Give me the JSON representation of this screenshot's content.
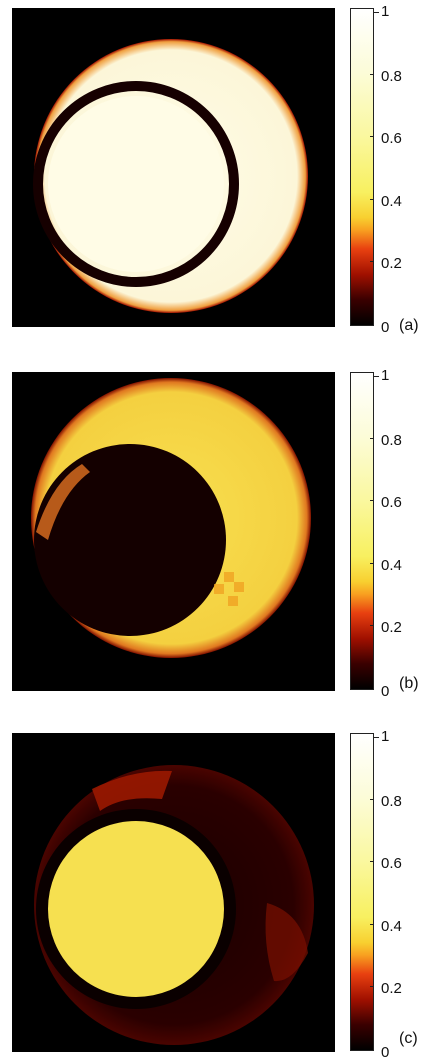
{
  "panels": [
    {
      "label": "(a)",
      "colorbar_ticks": [
        "1",
        "0.8",
        "0.6",
        "0.4",
        "0.2",
        "0"
      ]
    },
    {
      "label": "(b)",
      "colorbar_ticks": [
        "1",
        "0.8",
        "0.6",
        "0.4",
        "0.2",
        "0"
      ]
    },
    {
      "label": "(c)",
      "colorbar_ticks": [
        "1",
        "0.8",
        "0.6",
        "0.4",
        "0.2",
        "0"
      ]
    }
  ],
  "colormap": {
    "name": "hot",
    "colors": [
      "#000000",
      "#a01000",
      "#f8a020",
      "#f8f060",
      "#ffffff"
    ]
  }
}
